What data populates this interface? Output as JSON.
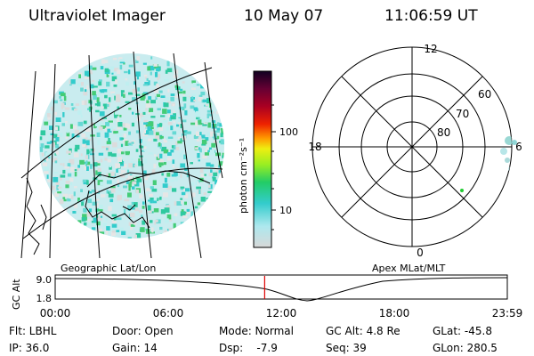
{
  "header": {
    "instrument": "Ultraviolet Imager",
    "date": "10 May 07",
    "time": "11:06:59 UT"
  },
  "colorbar": {
    "unit_label": "photon cm⁻²s⁻¹",
    "ticks": [
      "100",
      "10"
    ]
  },
  "polar_plot": {
    "mlt_labels": {
      "top": "12",
      "left": "18",
      "right": "6",
      "bottom": "0"
    },
    "lat_labels": [
      "60",
      "70",
      "80"
    ]
  },
  "panel_labels": {
    "geo": "Geographic Lat/Lon",
    "apex": "Apex MLat/MLT"
  },
  "gc_alt_strip": {
    "axis_label": "GC Alt",
    "y_ticks": [
      "9.0",
      "1.8"
    ],
    "time_ticks": [
      "00:00",
      "06:00",
      "12:00",
      "18:00",
      "23:59"
    ],
    "marker_time_hours": 11.12,
    "marker_color": "#dd0000"
  },
  "info": {
    "filter": "Flt: LBHL",
    "ip": "IP: 36.0",
    "door": "Door: Open",
    "gain": "Gain: 14",
    "mode": "Mode: Normal",
    "dsp": "Dsp:    -7.9",
    "gc_alt": "GC Alt: 4.8 Re",
    "seq": "Seq: 39",
    "glat": "GLat: -45.8",
    "glon": "GLon: 280.5"
  }
}
